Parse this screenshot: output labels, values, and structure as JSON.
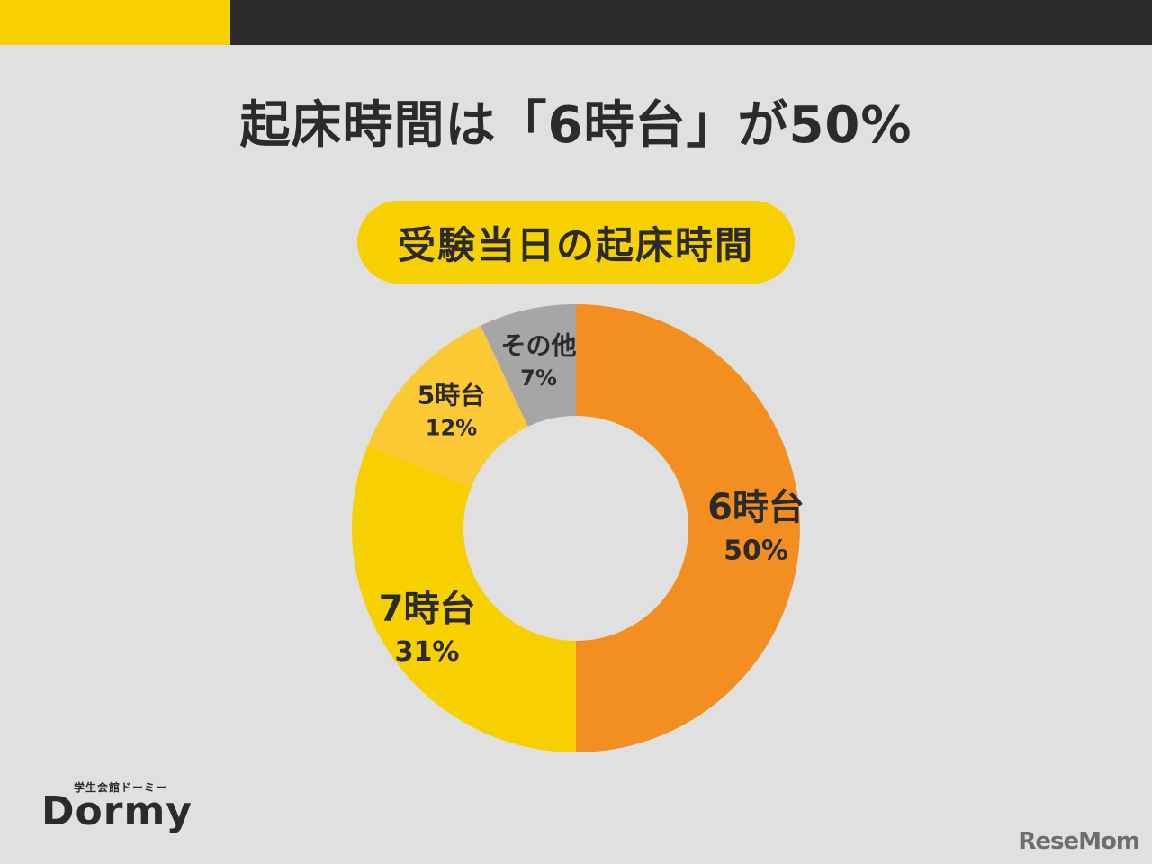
{
  "headline": "起床時間は「6時台」が50%",
  "chart_data": {
    "type": "pie",
    "title": "受験当日の起床時間",
    "categories": [
      "6時台",
      "7時台",
      "5時台",
      "その他"
    ],
    "values": [
      50,
      31,
      12,
      7
    ],
    "value_labels": [
      "50%",
      "31%",
      "12%",
      "7%"
    ],
    "colors": [
      "#f28f20",
      "#f6d000",
      "#fbc934",
      "#a6a6a6"
    ],
    "legend": "none"
  },
  "branding": {
    "logo_sub": "学生会館ドーミー",
    "logo_main": "Dormy",
    "watermark": "ReseMom"
  }
}
